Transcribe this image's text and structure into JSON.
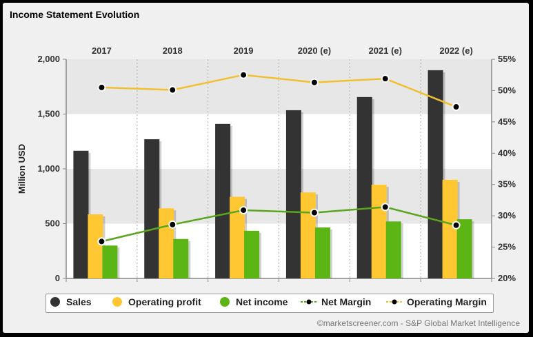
{
  "title": "Income Statement Evolution",
  "credit": "©marketscreener.com - S&P Global Market Intelligence",
  "legend": [
    {
      "label": "Sales",
      "kind": "dot",
      "color": "#333333"
    },
    {
      "label": "Operating profit",
      "kind": "dot",
      "color": "#ffc832"
    },
    {
      "label": "Net income",
      "kind": "dot",
      "color": "#5bb514"
    },
    {
      "label": "Net Margin",
      "kind": "line",
      "color": "#5aa51e"
    },
    {
      "label": "Operating Margin",
      "kind": "line",
      "color": "#f0c030"
    }
  ],
  "chart_data": {
    "type": "bar",
    "categories": [
      "2017",
      "2018",
      "2019",
      "2020 (e)",
      "2021 (e)",
      "2022 (e)"
    ],
    "ylabel": "Million USD",
    "ylim": [
      0,
      2000
    ],
    "yticks": [
      "0",
      "500",
      "1,000",
      "1,500",
      "2,000"
    ],
    "y2lim": [
      20,
      55
    ],
    "y2ticks": [
      "20%",
      "25%",
      "30%",
      "35%",
      "40%",
      "45%",
      "50%",
      "55%"
    ],
    "series": [
      {
        "name": "Sales",
        "type": "bar",
        "axis": "left",
        "color": "#333333",
        "values": [
          1165,
          1270,
          1410,
          1535,
          1655,
          1900
        ]
      },
      {
        "name": "Operating profit",
        "type": "bar",
        "axis": "left",
        "color": "#ffc832",
        "values": [
          585,
          640,
          745,
          785,
          855,
          900
        ]
      },
      {
        "name": "Net income",
        "type": "bar",
        "axis": "left",
        "color": "#5bb514",
        "values": [
          300,
          360,
          435,
          465,
          520,
          540
        ]
      },
      {
        "name": "Net Margin",
        "type": "line",
        "axis": "right",
        "color": "#5aa51e",
        "values": [
          25.9,
          28.6,
          30.9,
          30.5,
          31.4,
          28.5
        ]
      },
      {
        "name": "Operating Margin",
        "type": "line",
        "axis": "right",
        "color": "#f0c030",
        "values": [
          50.5,
          50.1,
          52.5,
          51.3,
          51.9,
          47.4
        ]
      }
    ],
    "grid": true,
    "legend_position": "bottom"
  }
}
